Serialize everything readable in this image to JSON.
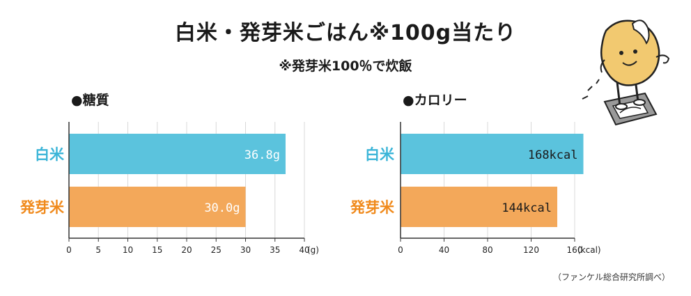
{
  "title": "白米・発芽米ごはん※100g当たり",
  "subtitle": "※発芽米100％で炊飯",
  "source": "（ファンケル総合研究所調べ）",
  "colors": {
    "white_rice": "#5bc3dd",
    "germinated_rice": "#f3a85a",
    "white_rice_label": "#3bb5d8",
    "germinated_rice_label": "#f08a1c",
    "axis": "#333333",
    "grid": "#d8d8d8"
  },
  "chart_data": [
    {
      "type": "bar",
      "orientation": "horizontal",
      "title": "●糖質",
      "categories": [
        "白米",
        "発芽米"
      ],
      "values": [
        36.8,
        30.0
      ],
      "data_labels": [
        "36.8g",
        "30.0g"
      ],
      "xlim": [
        0,
        40
      ],
      "xticks": [
        0,
        5,
        10,
        15,
        20,
        25,
        30,
        35,
        40
      ],
      "xunit": "(g)",
      "grid": true
    },
    {
      "type": "bar",
      "orientation": "horizontal",
      "title": "●カロリー",
      "categories": [
        "白米",
        "発芽米"
      ],
      "values": [
        168,
        144
      ],
      "data_labels": [
        "168kcal",
        "144kcal"
      ],
      "xlim": [
        0,
        160
      ],
      "xticks": [
        0,
        40,
        80,
        120,
        160
      ],
      "xunit": "(kcal)",
      "grid": true
    }
  ]
}
